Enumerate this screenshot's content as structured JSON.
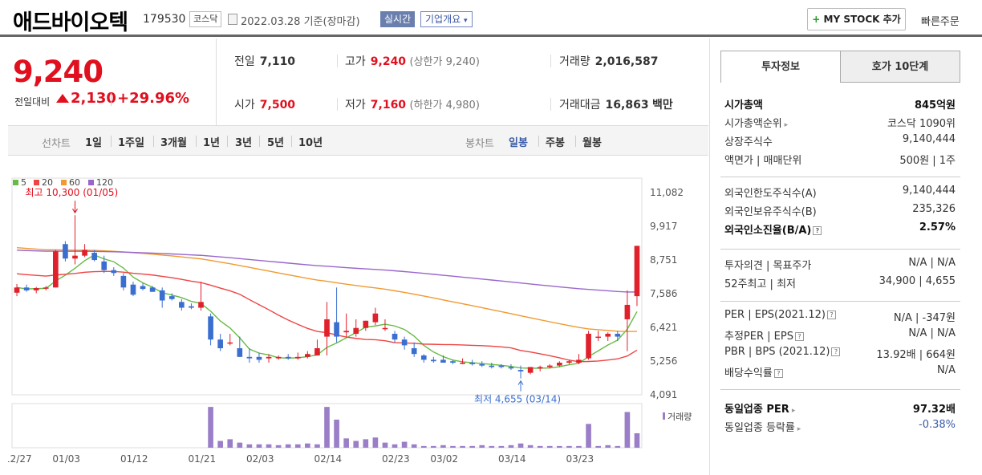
{
  "header": {
    "company_name": "애드바이오텍",
    "code": "179530",
    "market": "코스닥",
    "date": "2022.03.28",
    "basis": "기준(장마감)",
    "realtime_btn": "실시간",
    "company_info_btn": "기업개요",
    "mystock_btn": "MY STOCK 추가",
    "quick_order": "빠른주문"
  },
  "price": {
    "current": "9,240",
    "change_label": "전일대비",
    "change_amount": "2,130",
    "change_pct": "+29.96%"
  },
  "stats": {
    "prev_close_label": "전일",
    "prev_close": "7,110",
    "high_label": "고가",
    "high": "9,240",
    "high_sub": "(상한가 9,240)",
    "volume_label": "거래량",
    "volume": "2,016,587",
    "open_label": "시가",
    "open": "7,500",
    "low_label": "저가",
    "low": "7,160",
    "low_sub": "(하한가 4,980)",
    "amount_label": "거래대금",
    "amount": "16,863",
    "amount_unit": "백만"
  },
  "tabs": {
    "line_label": "선차트",
    "periods": [
      "1일",
      "1주일",
      "3개월",
      "1년",
      "3년",
      "5년",
      "10년"
    ],
    "candle_label": "봉차트",
    "candles": [
      "일봉",
      "주봉",
      "월봉"
    ],
    "active_candle": "일봉"
  },
  "chart_data": {
    "type": "candlestick",
    "legend": [
      {
        "name": "5",
        "color": "#66bb44"
      },
      {
        "name": "20",
        "color": "#ee4444"
      },
      {
        "name": "60",
        "color": "#f09a30"
      },
      {
        "name": "120",
        "color": "#9966cc"
      }
    ],
    "y_ticks": [
      "11,082",
      "9,917",
      "8,751",
      "7,586",
      "6,421",
      "5,256",
      "4,091"
    ],
    "ylim": [
      4091,
      11082
    ],
    "x_ticks": [
      "12/27",
      "01/03",
      "01/12",
      "01/21",
      "02/03",
      "02/14",
      "02/23",
      "03/02",
      "03/14",
      "03/23"
    ],
    "x_tick_index": [
      0,
      5,
      12,
      19,
      25,
      32,
      39,
      44,
      51,
      58
    ],
    "high_annotation": "최고 10,300 (01/05)",
    "low_annotation": "최저 4,655 (03/14)",
    "volume_label": "거래량",
    "candles": [
      [
        7620,
        7920,
        7500,
        7800,
        1
      ],
      [
        7800,
        7900,
        7650,
        7700,
        1
      ],
      [
        7700,
        7820,
        7600,
        7780,
        1
      ],
      [
        7800,
        7850,
        7700,
        7800,
        1
      ],
      [
        7800,
        9100,
        7800,
        9050,
        1
      ],
      [
        9300,
        9400,
        8700,
        8800,
        1
      ],
      [
        8800,
        10300,
        8600,
        8900,
        1
      ],
      [
        8900,
        9300,
        8850,
        9100,
        1
      ],
      [
        9000,
        9100,
        8700,
        8750,
        1
      ],
      [
        8700,
        8900,
        8300,
        8400,
        1
      ],
      [
        8400,
        8500,
        8200,
        8300,
        1
      ],
      [
        8200,
        8300,
        7700,
        7800,
        1
      ],
      [
        7900,
        8000,
        7500,
        7550,
        1
      ],
      [
        7850,
        7950,
        7700,
        7750,
        1
      ],
      [
        7800,
        7850,
        7650,
        7650,
        1
      ],
      [
        7700,
        7800,
        7100,
        7350,
        1
      ],
      [
        7500,
        7600,
        7350,
        7400,
        1
      ],
      [
        7300,
        7400,
        7000,
        7100,
        1
      ],
      [
        7150,
        7250,
        7050,
        7100,
        1
      ],
      [
        7100,
        8000,
        7000,
        7300,
        1
      ],
      [
        6800,
        6900,
        5800,
        6000,
        3
      ],
      [
        6000,
        6200,
        5600,
        5700,
        1.5
      ],
      [
        5900,
        6200,
        5800,
        5900,
        1.2
      ],
      [
        5700,
        6100,
        5400,
        5400,
        1
      ],
      [
        5400,
        5700,
        5200,
        5350,
        1
      ],
      [
        5400,
        5550,
        5200,
        5300,
        1
      ],
      [
        5350,
        5500,
        5200,
        5400,
        1
      ],
      [
        5350,
        5450,
        5300,
        5400,
        1
      ],
      [
        5400,
        5500,
        5300,
        5350,
        1
      ],
      [
        5350,
        5550,
        5300,
        5400,
        1
      ],
      [
        5400,
        5600,
        5350,
        5500,
        1
      ],
      [
        5450,
        6000,
        5450,
        5700,
        1.1
      ],
      [
        6100,
        7300,
        5450,
        6700,
        3
      ],
      [
        6600,
        7800,
        5900,
        6100,
        2.5
      ],
      [
        6250,
        6900,
        6100,
        6300,
        1.2
      ],
      [
        6200,
        6700,
        6100,
        6400,
        1.1
      ],
      [
        6400,
        6650,
        6300,
        6650,
        1
      ],
      [
        6600,
        7100,
        6500,
        6900,
        1.2
      ],
      [
        6400,
        6700,
        6300,
        6400,
        1
      ],
      [
        6200,
        6300,
        5900,
        6000,
        1
      ],
      [
        6000,
        6100,
        5650,
        5800,
        1
      ],
      [
        5700,
        5900,
        5400,
        5500,
        1
      ],
      [
        5450,
        5500,
        5200,
        5300,
        1
      ],
      [
        5300,
        5400,
        5200,
        5250,
        1
      ],
      [
        5300,
        5450,
        5200,
        5200,
        1
      ],
      [
        5250,
        5300,
        5150,
        5200,
        1
      ],
      [
        5200,
        5350,
        5150,
        5200,
        1
      ],
      [
        5200,
        5300,
        5100,
        5150,
        1
      ],
      [
        5150,
        5250,
        5050,
        5100,
        1
      ],
      [
        5100,
        5200,
        5000,
        5050,
        1
      ],
      [
        5100,
        5150,
        5000,
        5050,
        1
      ],
      [
        5050,
        5150,
        4950,
        5000,
        1
      ],
      [
        4950,
        5100,
        4655,
        4900,
        1
      ],
      [
        4850,
        5050,
        4800,
        5050,
        1
      ],
      [
        5000,
        5100,
        4900,
        5050,
        1
      ],
      [
        5050,
        5150,
        5000,
        5100,
        1
      ],
      [
        5100,
        5250,
        5050,
        5200,
        1
      ],
      [
        5200,
        5300,
        5150,
        5250,
        1
      ],
      [
        5200,
        5500,
        5150,
        5300,
        1
      ],
      [
        5350,
        6300,
        5300,
        6200,
        3
      ],
      [
        6100,
        6300,
        5950,
        6100,
        1.3
      ],
      [
        6100,
        6250,
        5950,
        6200,
        1.1
      ],
      [
        6200,
        6300,
        5950,
        6100,
        1
      ],
      [
        6700,
        7700,
        5600,
        7200,
        4
      ],
      [
        7500,
        9240,
        7160,
        9240,
        1.8
      ]
    ],
    "volumes": [
      0,
      0,
      0,
      0,
      0,
      0,
      0,
      0,
      0,
      0,
      0,
      0,
      0,
      0,
      0,
      0,
      0,
      0,
      0,
      0,
      48,
      8,
      10,
      6,
      4,
      4,
      4,
      3,
      4,
      4,
      5,
      4,
      48,
      33,
      11,
      8,
      10,
      12,
      6,
      4,
      7,
      4,
      2,
      2,
      3,
      2,
      2,
      2,
      3,
      2,
      2,
      3,
      5,
      3,
      2,
      2,
      2,
      2,
      2,
      28,
      2,
      3,
      2,
      42,
      17
    ]
  },
  "invest": {
    "tab_active": "투자정보",
    "tab_other": "호가 10단계",
    "rows1": [
      {
        "k": "시가총액",
        "v": "845억원",
        "bold": true
      },
      {
        "k": "시가총액순위",
        "v": "코스닥 1090위",
        "caret": true
      },
      {
        "k": "상장주식수",
        "v": "9,140,444"
      },
      {
        "k": "액면가 | 매매단위",
        "v": "500원 | 1주"
      }
    ],
    "rows2": [
      {
        "k": "외국인한도주식수(A)",
        "v": "9,140,444"
      },
      {
        "k": "외국인보유주식수(B)",
        "v": "235,326"
      },
      {
        "k": "외국인소진율(B/A)",
        "v": "2.57%",
        "bold": true,
        "q": true
      }
    ],
    "rows3": [
      {
        "k": "투자의견 | 목표주가",
        "v": "N/A | N/A"
      },
      {
        "k": "52주최고 | 최저",
        "v": "34,900 | 4,655"
      }
    ],
    "rows4": [
      {
        "k": "PER | EPS(2021.12)",
        "v": "N/A | -347원",
        "q": true
      },
      {
        "k": "추정PER | EPS",
        "v": "N/A | N/A",
        "q": true
      },
      {
        "k": "PBR | BPS (2021.12)",
        "v": "13.92배 | 664원",
        "q": true
      },
      {
        "k": "배당수익률",
        "v": "N/A",
        "q": true
      }
    ],
    "rows5": [
      {
        "k": "동일업종 PER",
        "v": "97.32배",
        "bold": true,
        "caret": true
      },
      {
        "k": "동일업종 등락률",
        "v": "-0.38%",
        "caret": true,
        "blue": true
      }
    ]
  }
}
